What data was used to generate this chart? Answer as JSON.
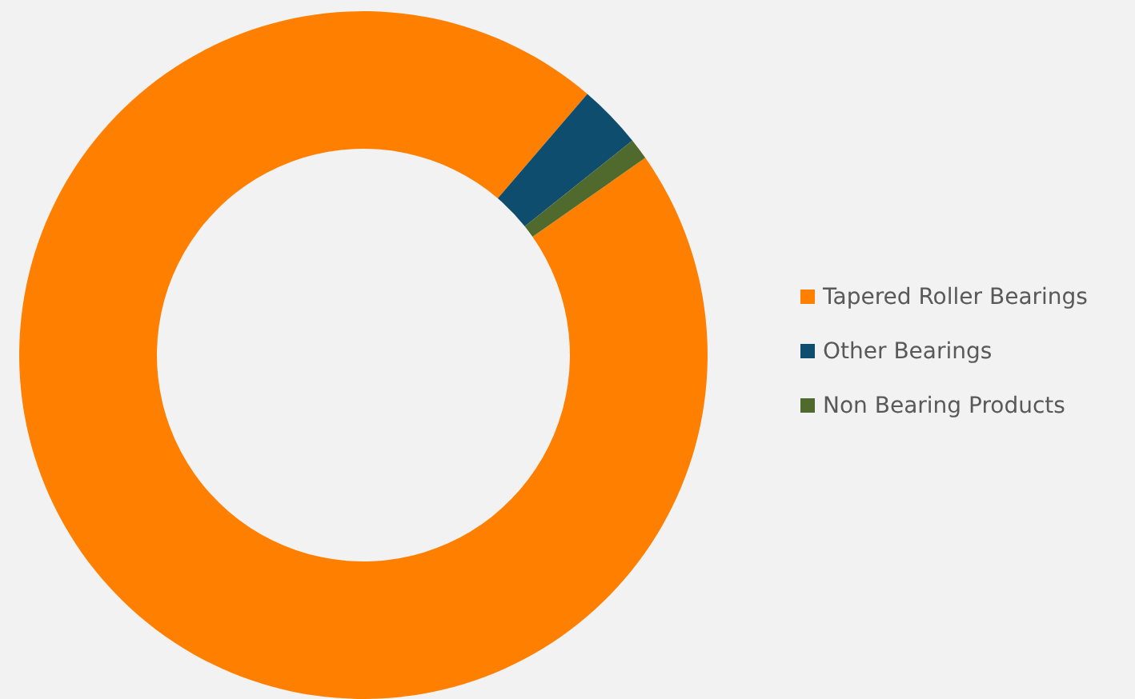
{
  "chart_data": {
    "type": "donut",
    "categories": [
      "Tapered Roller Bearings",
      "Other Bearings",
      "Non Bearing Products"
    ],
    "values": [
      96,
      3,
      1
    ],
    "colors": [
      "#ff8000",
      "#0e4d6e",
      "#4f6a2c"
    ],
    "legend": "right"
  }
}
